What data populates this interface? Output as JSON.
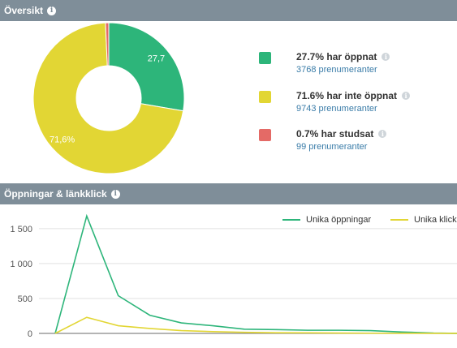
{
  "overview": {
    "title": "Översikt",
    "donut": {
      "segments": [
        {
          "name": "opened",
          "value": 27.7,
          "color": "#2db57a",
          "label": "27,7"
        },
        {
          "name": "not_opened",
          "value": 71.6,
          "color": "#e2d634",
          "label": "71,6%"
        },
        {
          "name": "bounced",
          "value": 0.7,
          "color": "#e46a66",
          "label": ""
        }
      ]
    },
    "legend": [
      {
        "label": "27.7% har öppnat",
        "sub": "3768 prenumeranter",
        "color": "#2db57a"
      },
      {
        "label": "71.6% har inte öppnat",
        "sub": "9743 prenumeranter",
        "color": "#e2d634"
      },
      {
        "label": "0.7% har studsat",
        "sub": "99 prenumeranter",
        "color": "#e46a66"
      }
    ]
  },
  "opens": {
    "title": "Öppningar & länkklick",
    "chart_data": {
      "type": "line",
      "x": [
        0,
        1,
        2,
        3,
        4,
        5,
        6,
        7,
        8,
        9,
        10,
        11,
        12,
        13
      ],
      "series": [
        {
          "name": "Unika öppningar",
          "color": "#2db57a",
          "values": [
            0,
            1680,
            540,
            260,
            150,
            110,
            60,
            55,
            45,
            45,
            40,
            20,
            5,
            0
          ]
        },
        {
          "name": "Unika klick",
          "color": "#e2d634",
          "values": [
            0,
            230,
            110,
            70,
            40,
            25,
            15,
            10,
            8,
            5,
            3,
            2,
            1,
            0
          ]
        }
      ],
      "yticks": [
        "0",
        "500",
        "1 000",
        "1 500"
      ],
      "ytick_values": [
        0,
        500,
        1000,
        1500
      ],
      "ylim": [
        0,
        1800
      ]
    }
  },
  "icons": {
    "info": "i"
  }
}
